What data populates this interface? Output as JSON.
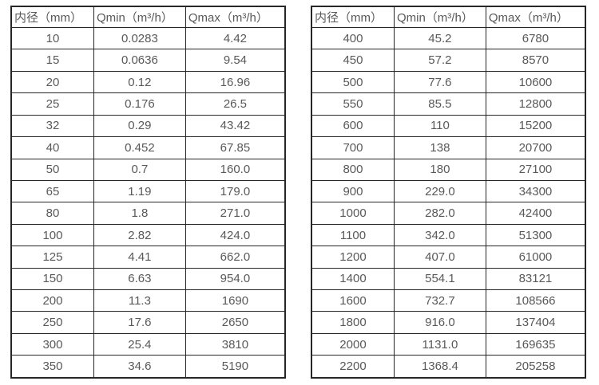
{
  "page": {
    "background_color": "#ffffff",
    "text_color": "#595959",
    "border_color": "#262626"
  },
  "tables": [
    {
      "name": "flow-table-small-diameters",
      "headers": [
        "内径（mm）",
        "Qmin（m³/h）",
        "Qmax（m³/h）"
      ],
      "rows": [
        [
          "10",
          "0.0283",
          "4.42"
        ],
        [
          "15",
          "0.0636",
          "9.54"
        ],
        [
          "20",
          "0.12",
          "16.96"
        ],
        [
          "25",
          "0.176",
          "26.5"
        ],
        [
          "32",
          "0.29",
          "43.42"
        ],
        [
          "40",
          "0.452",
          "67.85"
        ],
        [
          "50",
          "0.7",
          "160.0"
        ],
        [
          "65",
          "1.19",
          "179.0"
        ],
        [
          "80",
          "1.8",
          "271.0"
        ],
        [
          "100",
          "2.82",
          "424.0"
        ],
        [
          "125",
          "4.41",
          "662.0"
        ],
        [
          "150",
          "6.63",
          "954.0"
        ],
        [
          "200",
          "11.3",
          "1690"
        ],
        [
          "250",
          "17.6",
          "2650"
        ],
        [
          "300",
          "25.4",
          "3810"
        ],
        [
          "350",
          "34.6",
          "5190"
        ]
      ]
    },
    {
      "name": "flow-table-large-diameters",
      "headers": [
        "内径（mm）",
        "Qmin（m³/h）",
        "Qmax（m³/h）"
      ],
      "rows": [
        [
          "400",
          "45.2",
          "6780"
        ],
        [
          "450",
          "57.2",
          "8570"
        ],
        [
          "500",
          "77.6",
          "10600"
        ],
        [
          "550",
          "85.5",
          "12800"
        ],
        [
          "600",
          "110",
          "15200"
        ],
        [
          "700",
          "138",
          "20700"
        ],
        [
          "800",
          "180",
          "27100"
        ],
        [
          "900",
          "229.0",
          "34300"
        ],
        [
          "1000",
          "282.0",
          "42400"
        ],
        [
          "1100",
          "342.0",
          "51300"
        ],
        [
          "1200",
          "407.0",
          "61000"
        ],
        [
          "1400",
          "554.1",
          "83121"
        ],
        [
          "1600",
          "732.7",
          "108566"
        ],
        [
          "1800",
          "916.0",
          "137404"
        ],
        [
          "2000",
          "1131.0",
          "169635"
        ],
        [
          "2200",
          "1368.4",
          "205258"
        ]
      ]
    }
  ],
  "column_semantics": [
    "inner-diameter-mm",
    "qmin-m3-per-h",
    "qmax-m3-per-h"
  ]
}
